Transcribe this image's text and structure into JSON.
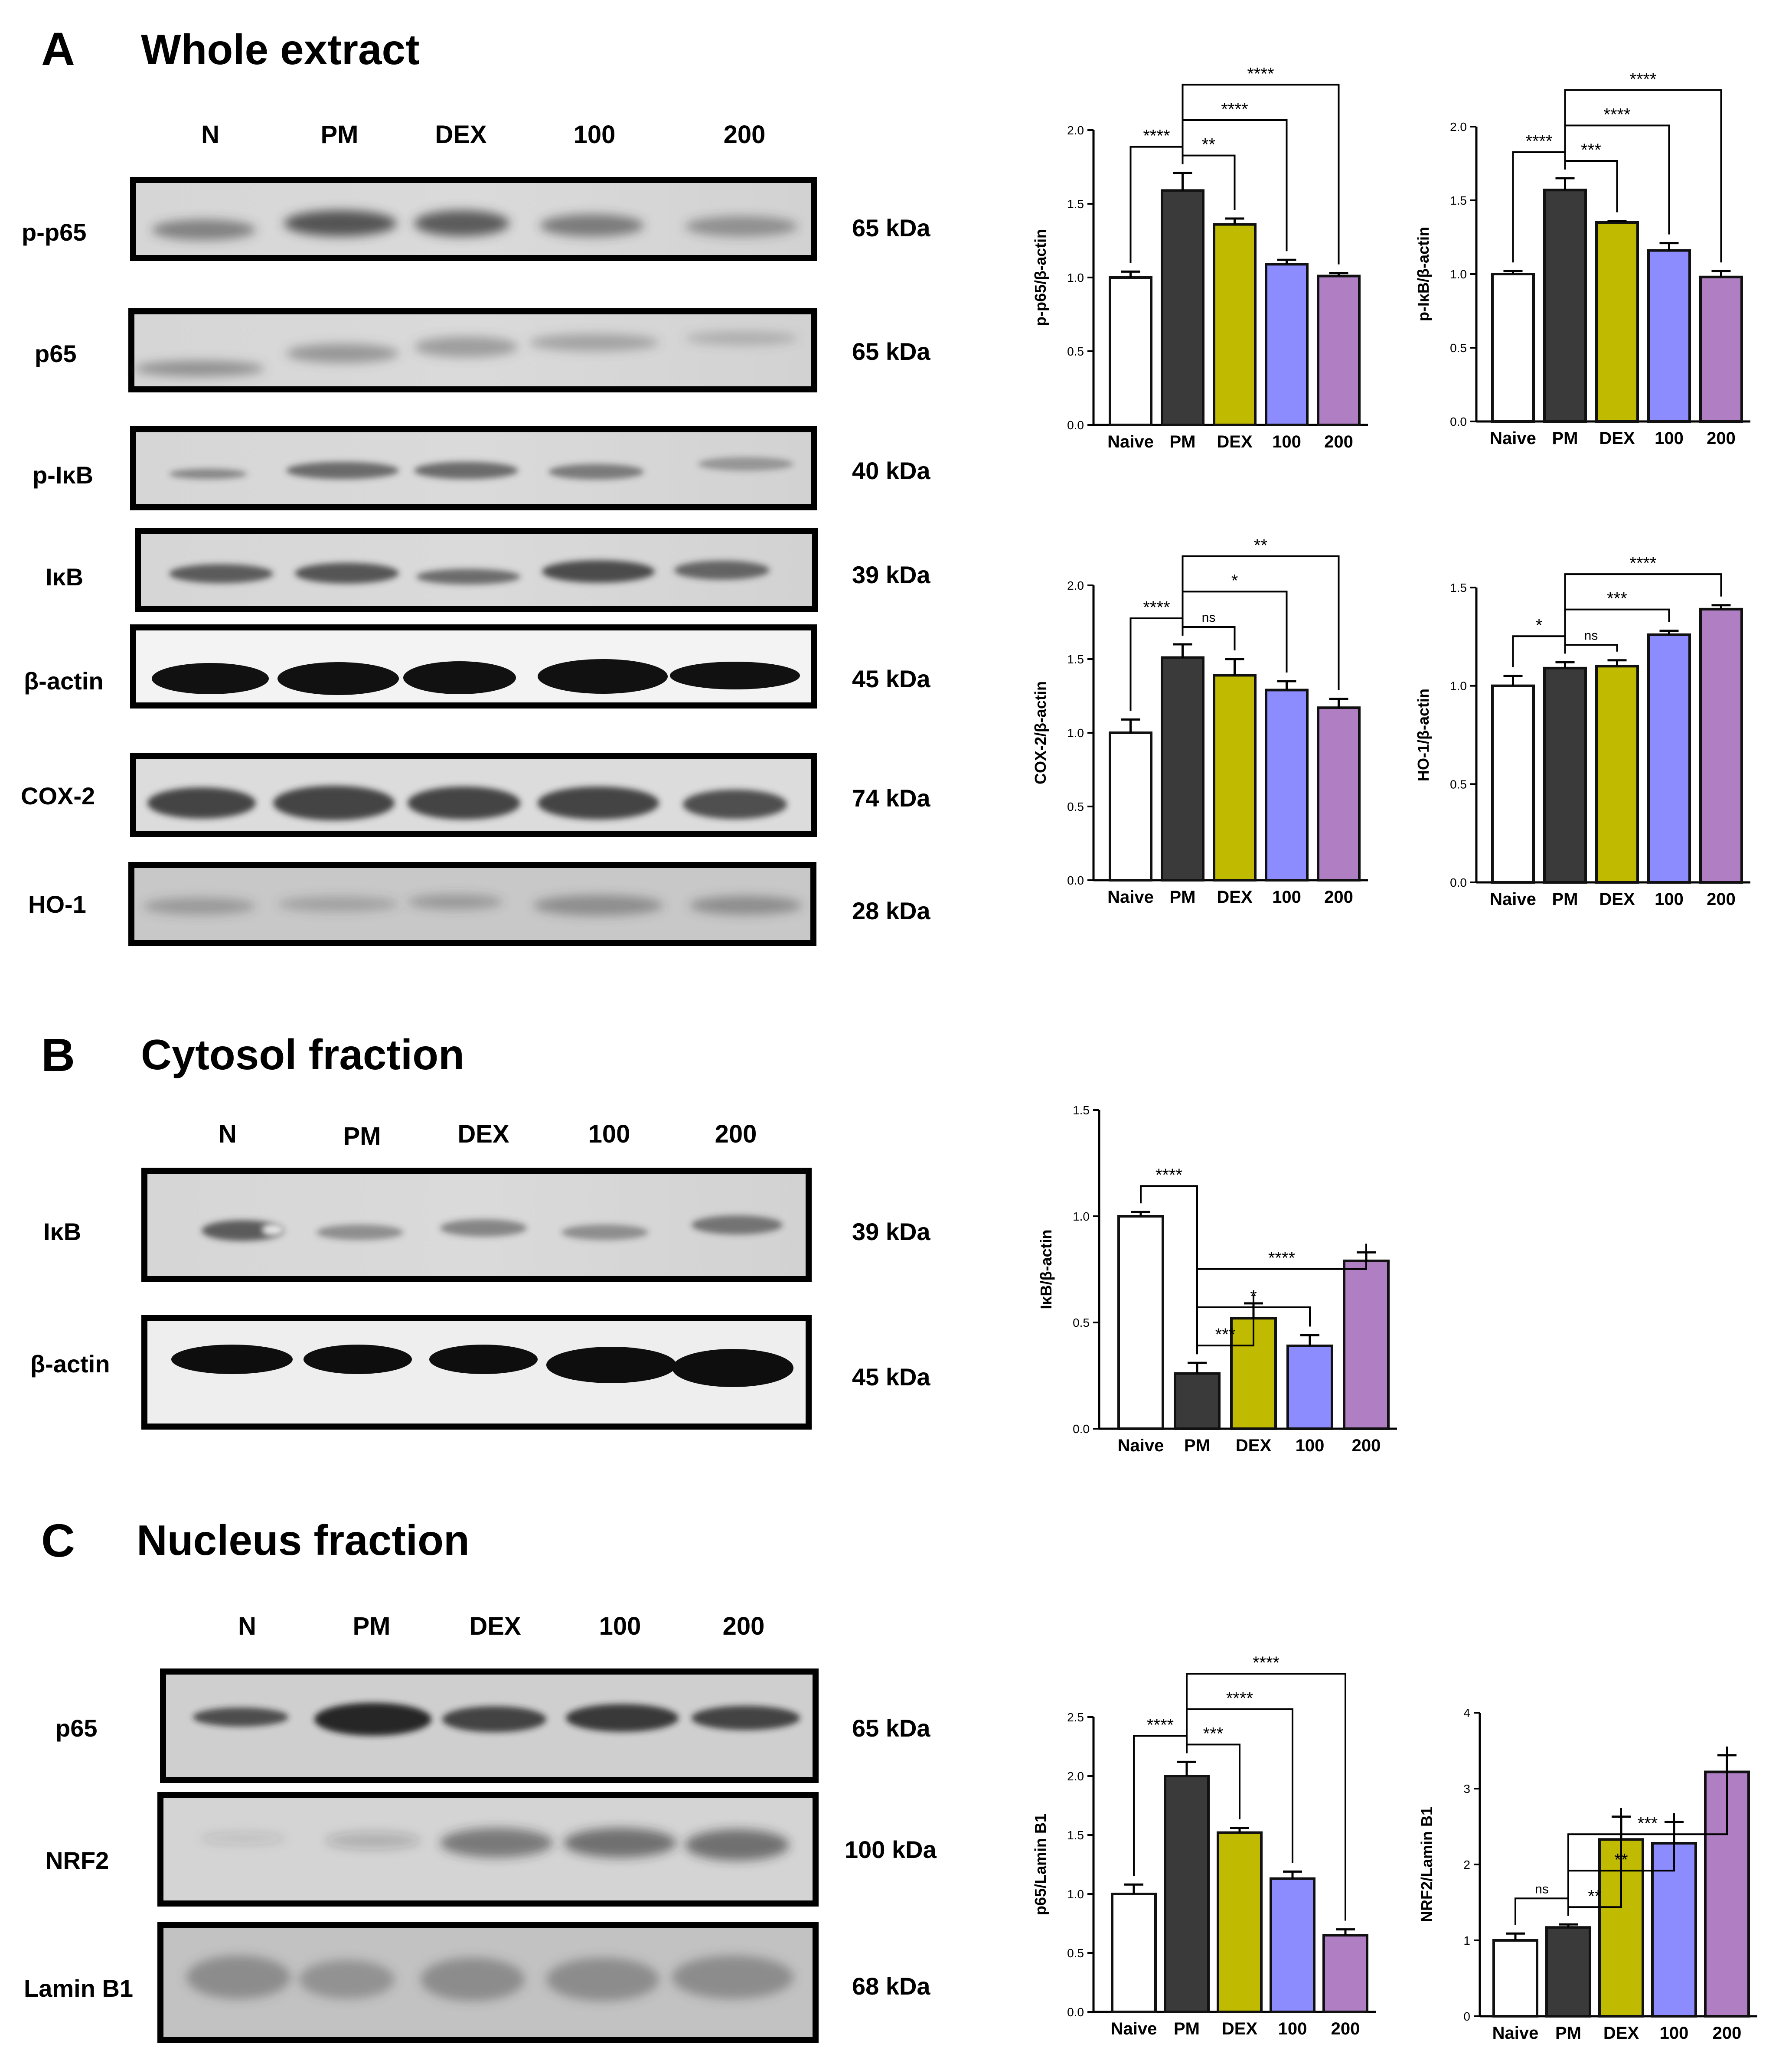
{
  "panels": [
    {
      "letter": "A",
      "title": "Whole extract"
    },
    {
      "letter": "B",
      "title": "Cytosol fraction"
    },
    {
      "letter": "C",
      "title": "Nucleus fraction"
    }
  ],
  "blot_lanes": {
    "A": [
      "N",
      "PM",
      "DEX",
      "100",
      "200"
    ],
    "B": [
      "N",
      "PM",
      "DEX",
      "100",
      "200"
    ],
    "C": [
      "N",
      "PM",
      "DEX",
      "100",
      "200"
    ]
  },
  "blot_rows": {
    "A": [
      {
        "protein": "p-p65",
        "size": "65 kDa"
      },
      {
        "protein": "p65",
        "size": "65 kDa"
      },
      {
        "protein": "p-IκB",
        "size": "40 kDa"
      },
      {
        "protein": "IκB",
        "size": "39 kDa"
      },
      {
        "protein": "β-actin",
        "size": "45 kDa"
      },
      {
        "protein": "COX-2",
        "size": "74 kDa"
      },
      {
        "protein": "HO-1",
        "size": "28 kDa"
      }
    ],
    "B": [
      {
        "protein": "IκB",
        "size": "39 kDa"
      },
      {
        "protein": "β-actin",
        "size": "45 kDa"
      }
    ],
    "C": [
      {
        "protein": "p65",
        "size": "65 kDa"
      },
      {
        "protein": "NRF2",
        "size": "100 kDa"
      },
      {
        "protein": "Lamin B1",
        "size": "68 kDa"
      }
    ]
  },
  "colors": {
    "Naive": "#ffffff",
    "PM": "#3a3a3a",
    "DEX": "#c0bb00",
    "100": "#8c8cff",
    "200": "#b07fc3",
    "outline": "#111111"
  },
  "chart_data": [
    {
      "type": "bar",
      "panel": "A",
      "ylabel": "p-p65/β-actin",
      "categories": [
        "Naive",
        "PM",
        "DEX",
        "100",
        "200"
      ],
      "values": [
        1.0,
        1.59,
        1.36,
        1.09,
        1.01
      ],
      "errors": [
        0.04,
        0.12,
        0.04,
        0.03,
        0.02
      ],
      "ylim": [
        0,
        2.0
      ],
      "yticks": [
        "0.0",
        "0.5",
        "1.0",
        "1.5",
        "2.0"
      ],
      "comparisons": [
        {
          "from": "Naive",
          "to": "PM",
          "label": "****"
        },
        {
          "from": "PM",
          "to": "DEX",
          "label": "**"
        },
        {
          "from": "PM",
          "to": "100",
          "label": "****"
        },
        {
          "from": "PM",
          "to": "200",
          "label": "****"
        }
      ]
    },
    {
      "type": "bar",
      "panel": "A",
      "ylabel": "p-IκB/β-actin",
      "categories": [
        "Naive",
        "PM",
        "DEX",
        "100",
        "200"
      ],
      "values": [
        1.0,
        1.57,
        1.35,
        1.16,
        0.98
      ],
      "errors": [
        0.02,
        0.08,
        0.01,
        0.05,
        0.04
      ],
      "ylim": [
        0,
        2.0
      ],
      "yticks": [
        "0.0",
        "0.5",
        "1.0",
        "1.5",
        "2.0"
      ],
      "comparisons": [
        {
          "from": "Naive",
          "to": "PM",
          "label": "****"
        },
        {
          "from": "PM",
          "to": "DEX",
          "label": "***"
        },
        {
          "from": "PM",
          "to": "100",
          "label": "****"
        },
        {
          "from": "PM",
          "to": "200",
          "label": "****"
        }
      ]
    },
    {
      "type": "bar",
      "panel": "A",
      "ylabel": "COX-2/β-actin",
      "categories": [
        "Naive",
        "PM",
        "DEX",
        "100",
        "200"
      ],
      "values": [
        1.0,
        1.51,
        1.39,
        1.29,
        1.17
      ],
      "errors": [
        0.09,
        0.09,
        0.11,
        0.06,
        0.06
      ],
      "ylim": [
        0,
        2.0
      ],
      "yticks": [
        "0.0",
        "0.5",
        "1.0",
        "1.5",
        "2.0"
      ],
      "comparisons": [
        {
          "from": "Naive",
          "to": "PM",
          "label": "****"
        },
        {
          "from": "PM",
          "to": "DEX",
          "label": "ns"
        },
        {
          "from": "PM",
          "to": "100",
          "label": "*"
        },
        {
          "from": "PM",
          "to": "200",
          "label": "**"
        }
      ]
    },
    {
      "type": "bar",
      "panel": "A",
      "ylabel": "HO-1/β-actin",
      "categories": [
        "Naive",
        "PM",
        "DEX",
        "100",
        "200"
      ],
      "values": [
        1.0,
        1.09,
        1.1,
        1.26,
        1.39
      ],
      "errors": [
        0.05,
        0.03,
        0.03,
        0.02,
        0.02
      ],
      "ylim": [
        0,
        1.5
      ],
      "yticks": [
        "0.0",
        "0.5",
        "1.0",
        "1.5"
      ],
      "comparisons": [
        {
          "from": "Naive",
          "to": "PM",
          "label": "*"
        },
        {
          "from": "PM",
          "to": "DEX",
          "label": "ns"
        },
        {
          "from": "PM",
          "to": "100",
          "label": "***"
        },
        {
          "from": "PM",
          "to": "200",
          "label": "****"
        }
      ]
    },
    {
      "type": "bar",
      "panel": "B",
      "ylabel": "IκB/β-actin",
      "categories": [
        "Naive",
        "PM",
        "DEX",
        "100",
        "200"
      ],
      "values": [
        1.0,
        0.26,
        0.52,
        0.39,
        0.79
      ],
      "errors": [
        0.02,
        0.05,
        0.07,
        0.05,
        0.04
      ],
      "ylim": [
        0,
        1.5
      ],
      "yticks": [
        "0.0",
        "0.5",
        "1.0",
        "1.5"
      ],
      "comparisons": [
        {
          "from": "Naive",
          "to": "PM",
          "label": "****"
        },
        {
          "from": "PM",
          "to": "DEX",
          "label": "***"
        },
        {
          "from": "PM",
          "to": "100",
          "label": "*"
        },
        {
          "from": "PM",
          "to": "200",
          "label": "****"
        }
      ]
    },
    {
      "type": "bar",
      "panel": "C",
      "ylabel": "p65/Lamin B1",
      "categories": [
        "Naive",
        "PM",
        "DEX",
        "100",
        "200"
      ],
      "values": [
        1.0,
        2.0,
        1.52,
        1.13,
        0.65
      ],
      "errors": [
        0.08,
        0.12,
        0.04,
        0.06,
        0.05
      ],
      "ylim": [
        0,
        2.5
      ],
      "yticks": [
        "0.0",
        "0.5",
        "1.0",
        "1.5",
        "2.0",
        "2.5"
      ],
      "comparisons": [
        {
          "from": "Naive",
          "to": "PM",
          "label": "****"
        },
        {
          "from": "PM",
          "to": "DEX",
          "label": "***"
        },
        {
          "from": "PM",
          "to": "100",
          "label": "****"
        },
        {
          "from": "PM",
          "to": "200",
          "label": "****"
        }
      ]
    },
    {
      "type": "bar",
      "panel": "C",
      "ylabel": "NRF2/Lamin B1",
      "categories": [
        "Naive",
        "PM",
        "DEX",
        "100",
        "200"
      ],
      "values": [
        1.0,
        1.17,
        2.33,
        2.28,
        3.22
      ],
      "errors": [
        0.09,
        0.04,
        0.3,
        0.28,
        0.22
      ],
      "ylim": [
        0,
        4
      ],
      "yticks": [
        "0",
        "1",
        "2",
        "3",
        "4"
      ],
      "comparisons": [
        {
          "from": "Naive",
          "to": "PM",
          "label": "ns"
        },
        {
          "from": "PM",
          "to": "DEX",
          "label": "**"
        },
        {
          "from": "PM",
          "to": "100",
          "label": "**"
        },
        {
          "from": "PM",
          "to": "200",
          "label": "***"
        }
      ]
    }
  ]
}
